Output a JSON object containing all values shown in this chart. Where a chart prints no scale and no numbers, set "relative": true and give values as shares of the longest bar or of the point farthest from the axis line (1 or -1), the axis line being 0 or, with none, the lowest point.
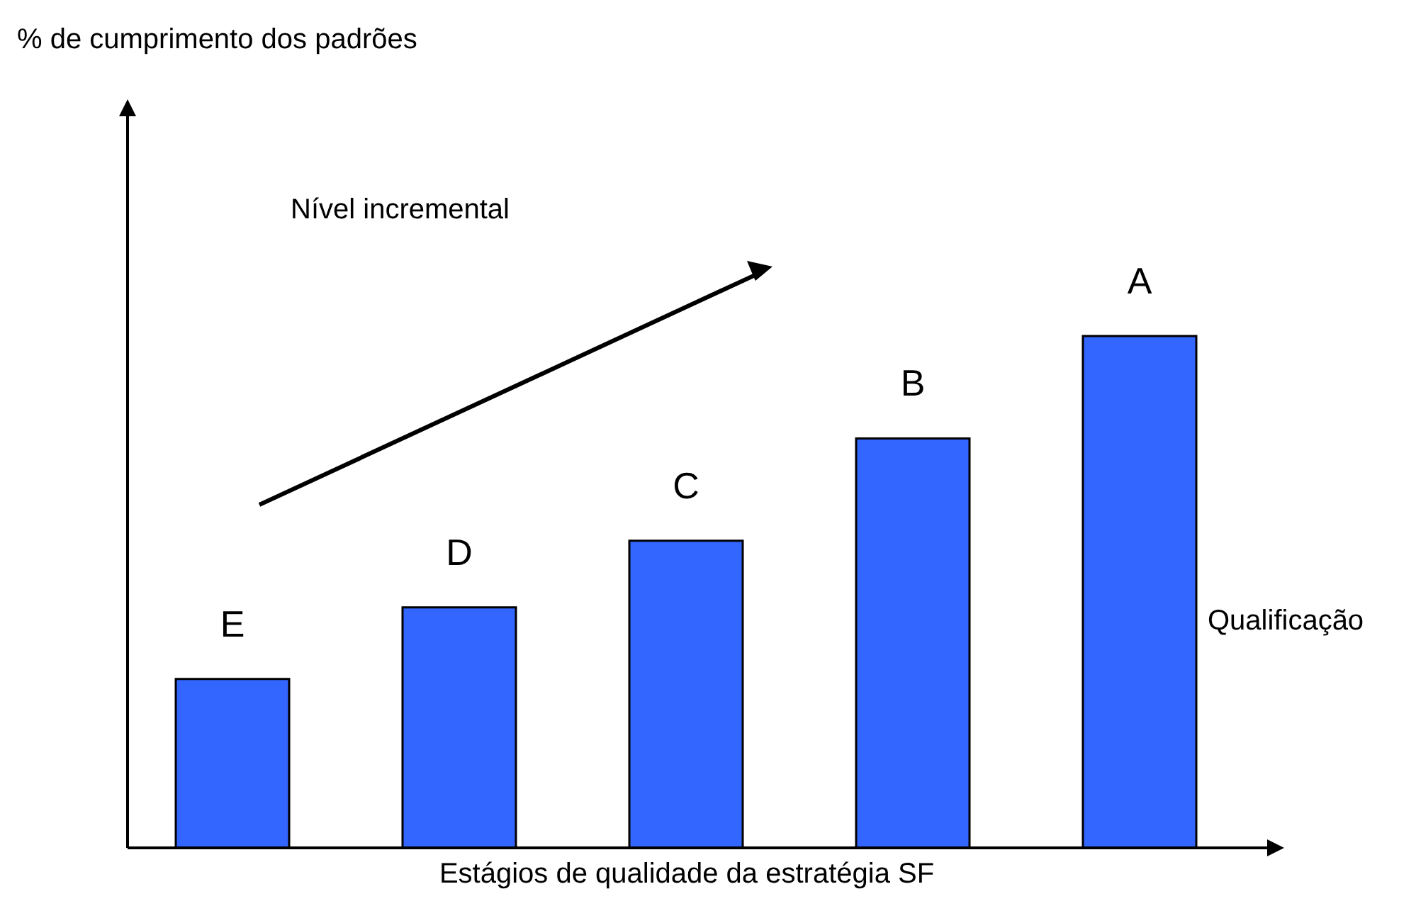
{
  "chart_data": {
    "type": "bar",
    "relative": true,
    "xlabel": "Estágios de qualidade da estratégia SF",
    "categories": [
      "E",
      "D",
      "C",
      "B",
      "A"
    ],
    "values": [
      0.33,
      0.47,
      0.6,
      0.8,
      1
    ],
    "color": "#3366ff",
    "annotations": [
      "Nível incremental",
      "Qualificação",
      "% de cumprimento dos padrões"
    ]
  }
}
